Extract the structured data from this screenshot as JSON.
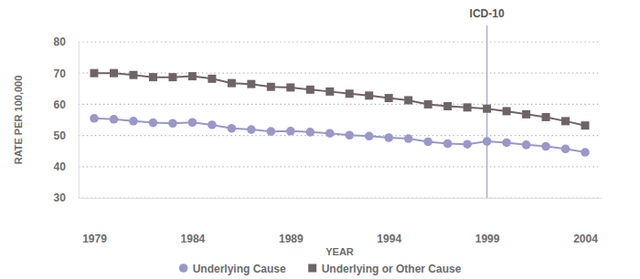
{
  "chart_data": {
    "type": "line",
    "x_label": "YEAR",
    "y_label": "RATE PER 100,000",
    "x": [
      1979,
      1980,
      1981,
      1982,
      1983,
      1984,
      1985,
      1986,
      1987,
      1988,
      1989,
      1990,
      1991,
      1992,
      1993,
      1994,
      1995,
      1996,
      1997,
      1998,
      1999,
      2000,
      2001,
      2002,
      2003,
      2004
    ],
    "series": [
      {
        "name": "Underlying Cause",
        "color": "#9a97c9",
        "marker": "circle",
        "values": [
          55.5,
          55.2,
          54.6,
          54.1,
          53.9,
          54.2,
          53.4,
          52.3,
          51.9,
          51.3,
          51.4,
          51.1,
          50.7,
          50.1,
          49.8,
          49.3,
          49.0,
          48.0,
          47.4,
          47.2,
          48.1,
          47.7,
          47.0,
          46.5,
          45.7,
          44.6
        ]
      },
      {
        "name": "Underlying or Other Cause",
        "color": "#6e6466",
        "marker": "square",
        "values": [
          70.0,
          70.0,
          69.4,
          68.7,
          68.7,
          69.0,
          68.2,
          66.8,
          66.5,
          65.6,
          65.4,
          64.7,
          64.1,
          63.4,
          62.8,
          62.0,
          61.3,
          60.0,
          59.4,
          59.0,
          58.6,
          57.8,
          56.8,
          55.9,
          54.6,
          53.2
        ]
      }
    ],
    "xlim": [
      1978.2,
      2004.8
    ],
    "xticks": [
      1979,
      1984,
      1989,
      1994,
      1999,
      2004
    ],
    "ylim": [
      30,
      80
    ],
    "yticks": [
      30,
      40,
      50,
      60,
      70,
      80
    ],
    "grid": true,
    "legend": "bottom",
    "annotations": [
      {
        "text": "ICD-10",
        "x": 1999
      }
    ]
  }
}
